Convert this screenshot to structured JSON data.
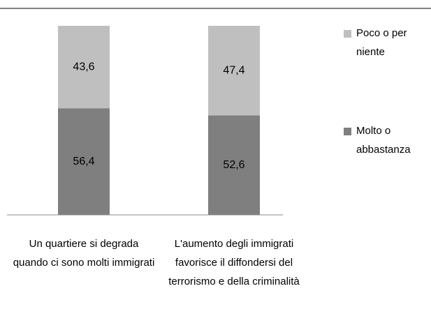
{
  "chart_data": {
    "type": "stacked_bar",
    "categories": [
      "Un quartiere si degrada quando ci sono molti immigrati",
      "L'aumento degli immigrati favorisce il diffondersi del terrorismo e della criminalità"
    ],
    "series": [
      {
        "name": "Molto o abbastanza",
        "color": "#7f7f7f",
        "values": [
          56.4,
          52.6
        ],
        "value_labels": [
          "56,4",
          "52,6"
        ]
      },
      {
        "name": "Poco o per niente",
        "color": "#bfbfbf",
        "values": [
          43.6,
          47.4
        ],
        "value_labels": [
          "43,6",
          "47,4"
        ]
      }
    ],
    "ylim": [
      0,
      100
    ],
    "legend": "right"
  }
}
